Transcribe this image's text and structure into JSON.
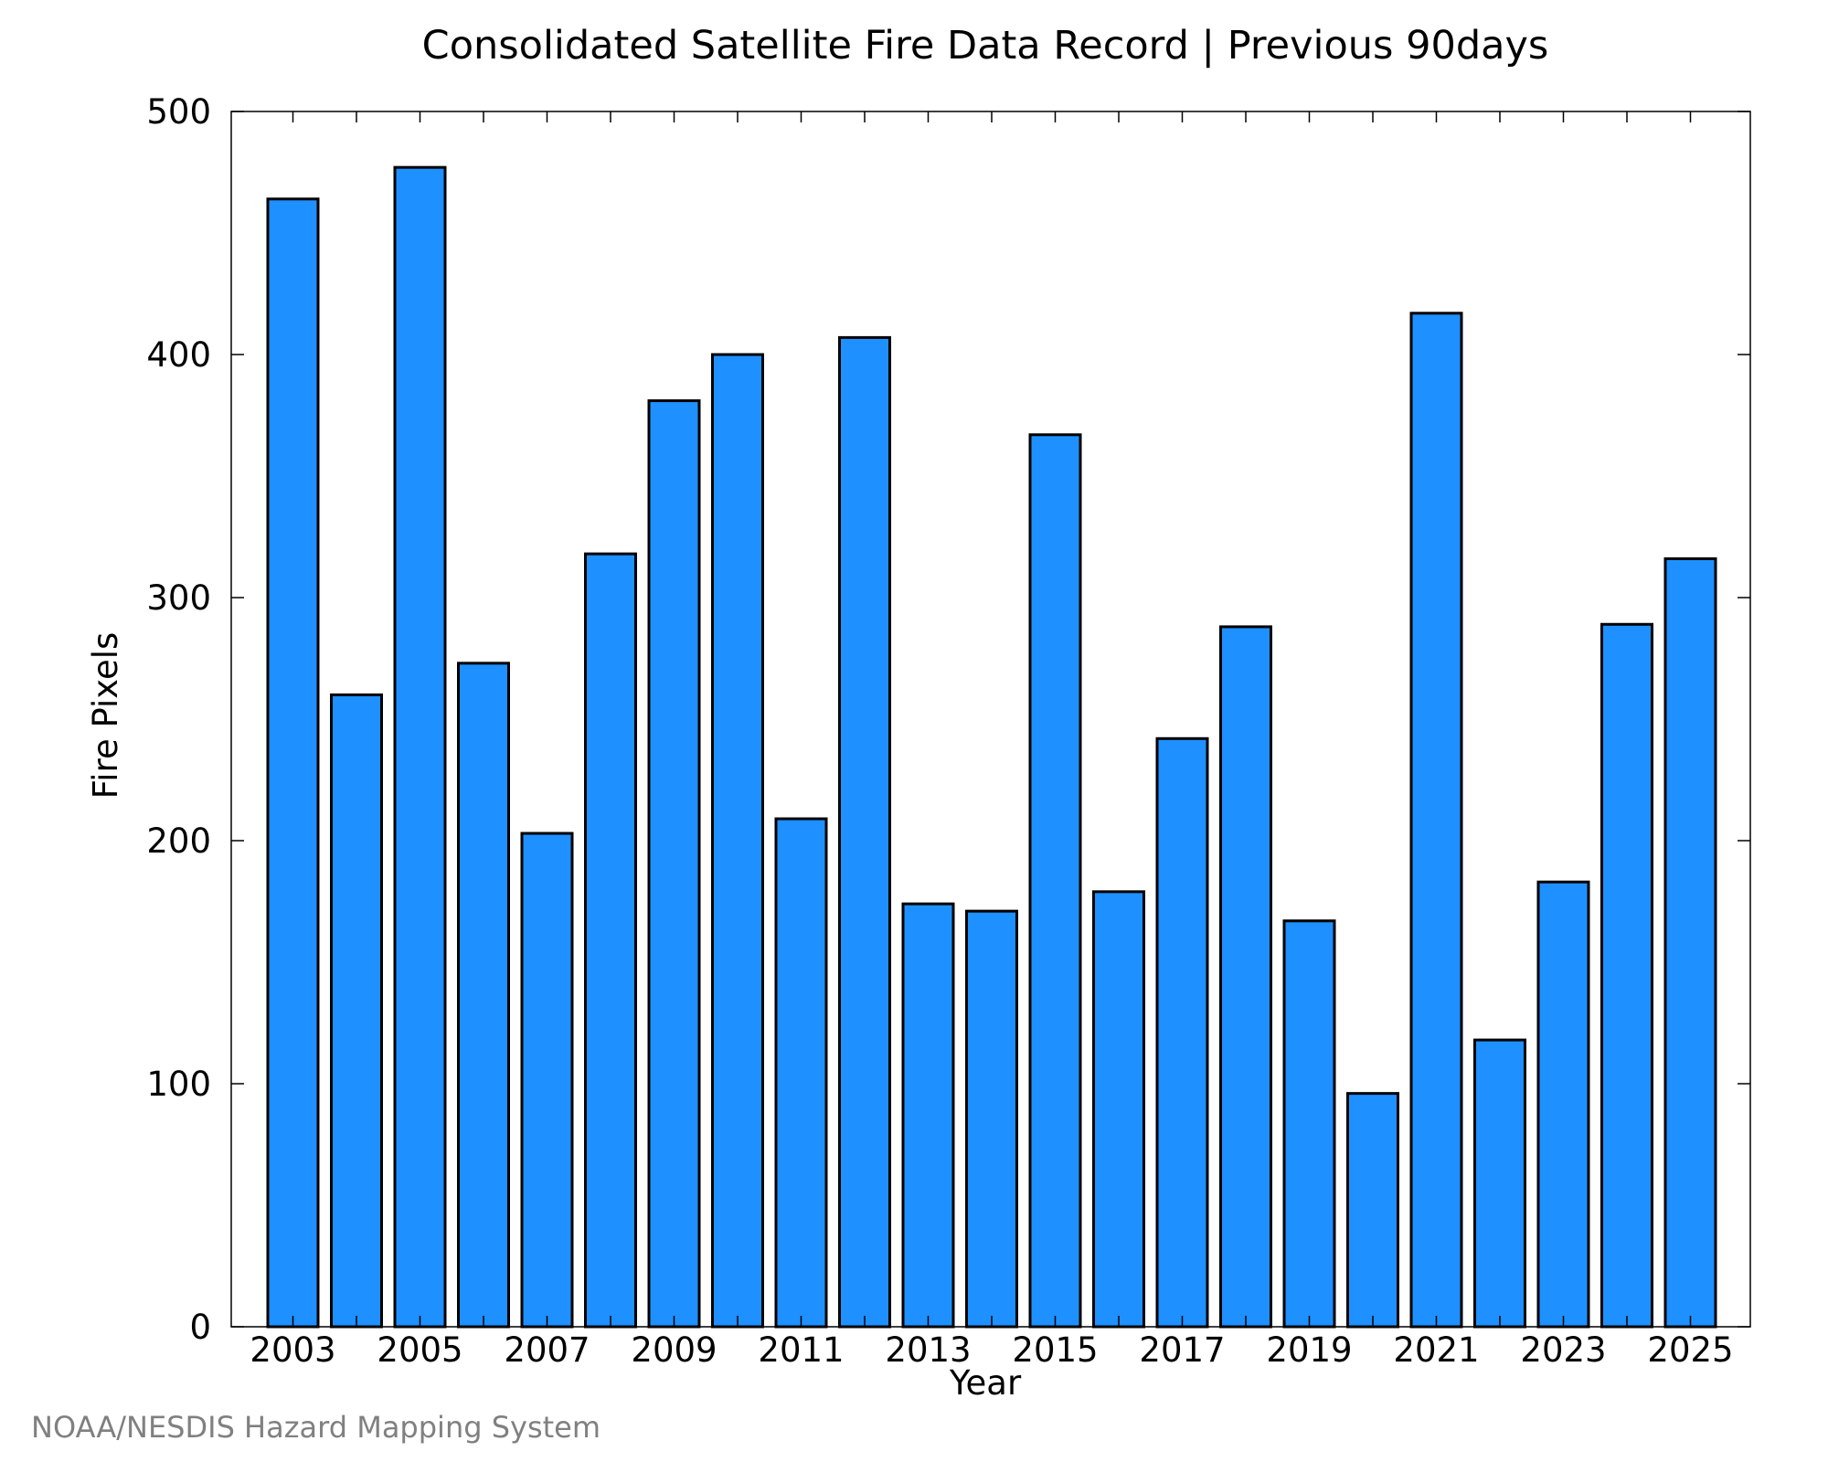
{
  "chart_data": {
    "type": "bar",
    "title": "Consolidated Satellite Fire Data Record | Previous 90days",
    "xlabel": "Year",
    "ylabel": "Fire Pixels",
    "categories": [
      "2003",
      "2004",
      "2005",
      "2006",
      "2007",
      "2008",
      "2009",
      "2010",
      "2011",
      "2012",
      "2013",
      "2014",
      "2015",
      "2016",
      "2017",
      "2018",
      "2019",
      "2020",
      "2021",
      "2022",
      "2023",
      "2024",
      "2025"
    ],
    "values": [
      464,
      260,
      477,
      273,
      203,
      318,
      381,
      400,
      209,
      407,
      174,
      171,
      367,
      179,
      242,
      288,
      167,
      96,
      417,
      118,
      183,
      289,
      316
    ],
    "x_tick_labels": [
      "2003",
      "2005",
      "2007",
      "2009",
      "2011",
      "2013",
      "2015",
      "2017",
      "2019",
      "2021",
      "2023",
      "2025"
    ],
    "y_ticks": [
      0,
      100,
      200,
      300,
      400,
      500
    ],
    "ylim": [
      0,
      500
    ],
    "grid": false,
    "bar_color": "#1e90ff",
    "edge_color": "#000000"
  },
  "credit": "NOAA/NESDIS Hazard Mapping System"
}
